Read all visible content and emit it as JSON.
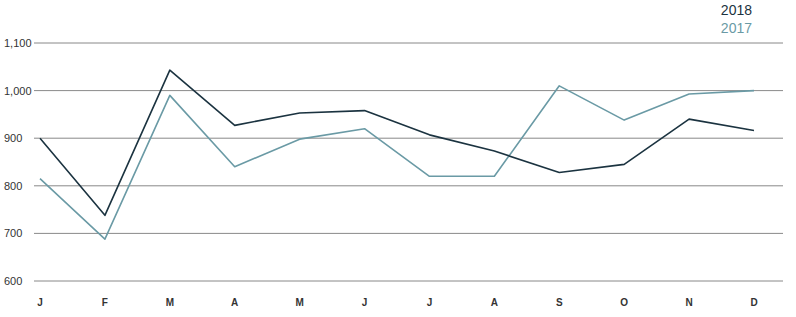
{
  "chart_data": {
    "type": "line",
    "categories": [
      "J",
      "F",
      "M",
      "A",
      "M",
      "J",
      "J",
      "A",
      "S",
      "O",
      "N",
      "D"
    ],
    "series": [
      {
        "name": "2018",
        "color": "#1b3340",
        "values": [
          900,
          738,
          1043,
          927,
          953,
          958,
          907,
          873,
          828,
          845,
          940,
          916
        ]
      },
      {
        "name": "2017",
        "color": "#6a9aa5",
        "values": [
          815,
          688,
          990,
          840,
          898,
          920,
          820,
          820,
          1010,
          938,
          993,
          1000
        ]
      }
    ],
    "ylim": [
      600,
      1100
    ],
    "yticks": [
      600,
      700,
      800,
      900,
      {
        "value": 1000,
        "label": "1,000"
      },
      {
        "value": 1100,
        "label": "1,100"
      }
    ],
    "grid": true,
    "legend": "top-right"
  }
}
